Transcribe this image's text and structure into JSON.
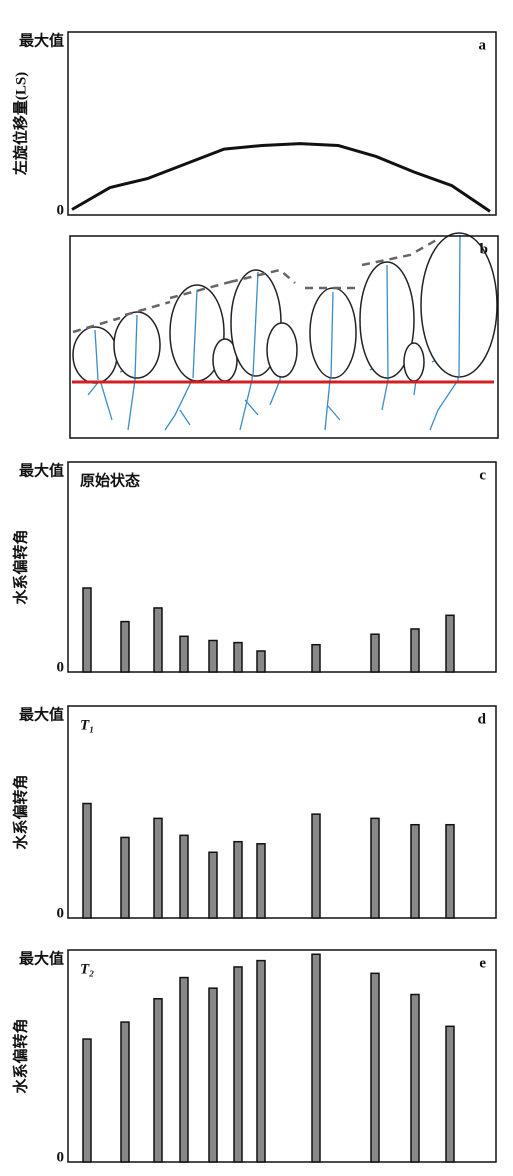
{
  "chart_data": [
    {
      "type": "line",
      "label": "a",
      "ylabel": "左旋位移量(LS)",
      "color": "#111111",
      "values": [
        3,
        15,
        20,
        28,
        36,
        38,
        39,
        38,
        32,
        23.5,
        16,
        2
      ],
      "ylim": [
        0,
        100
      ],
      "yticks": [
        0,
        {
          "value": 100,
          "label": "最大值"
        }
      ]
    },
    {
      "type": "illustration",
      "label": "b"
    },
    {
      "type": "bar",
      "label": "c",
      "annotation": "原始状态",
      "ylabel": "水系偏转角",
      "color": "#888888",
      "values": [
        40,
        24,
        30.5,
        17,
        15,
        14,
        10,
        13,
        18,
        20.5,
        27
      ],
      "ylim": [
        0,
        100
      ],
      "yticks": [
        0,
        {
          "value": 100,
          "label": "最大值"
        }
      ]
    },
    {
      "type": "bar",
      "label": "d",
      "annotation": "T₁",
      "ylabel": "水系偏转角",
      "color": "#888888",
      "values": [
        54,
        38,
        47,
        39,
        31,
        36,
        35,
        49,
        47,
        44,
        44
      ],
      "ylim": [
        0,
        100
      ],
      "yticks": [
        0,
        {
          "value": 100,
          "label": "最大值"
        }
      ]
    },
    {
      "type": "bar",
      "label": "e",
      "annotation": "T₂",
      "ylabel": "水系偏转角",
      "color": "#888888",
      "values": [
        58,
        66,
        77,
        87,
        82,
        92,
        95,
        98,
        89,
        79,
        64
      ],
      "ylim": [
        0,
        100
      ],
      "yticks": [
        0,
        {
          "value": 100,
          "label": "最大值"
        }
      ]
    }
  ]
}
